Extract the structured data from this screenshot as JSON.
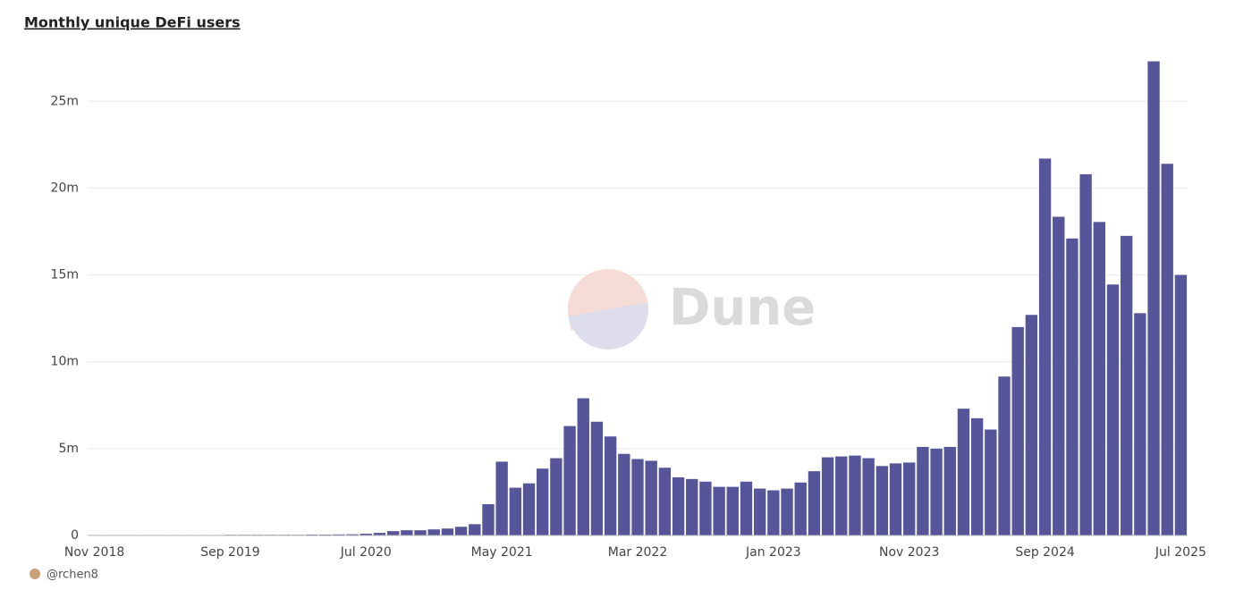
{
  "chart_data": {
    "type": "bar",
    "title": "Monthly unique DeFi users",
    "watermark": "Dune",
    "author": "@rchen8",
    "categories": [
      "Nov 2018",
      null,
      null,
      null,
      null,
      null,
      null,
      null,
      null,
      null,
      "Sep 2019",
      null,
      null,
      null,
      null,
      null,
      null,
      null,
      null,
      null,
      "Jul 2020",
      null,
      null,
      null,
      null,
      null,
      null,
      null,
      null,
      null,
      "May 2021",
      null,
      null,
      null,
      null,
      null,
      null,
      null,
      null,
      null,
      "Mar 2022",
      null,
      null,
      null,
      null,
      null,
      null,
      null,
      null,
      null,
      "Jan 2023",
      null,
      null,
      null,
      null,
      null,
      null,
      null,
      null,
      null,
      "Nov 2023",
      null,
      null,
      null,
      null,
      null,
      null,
      null,
      null,
      null,
      "Sep 2024",
      null,
      null,
      null,
      null,
      null,
      null,
      null,
      null,
      null,
      "Jul 2025"
    ],
    "values": [
      0.03,
      0.03,
      0.03,
      0.03,
      0.03,
      0.03,
      0.03,
      0.03,
      0.03,
      0.03,
      0.04,
      0.04,
      0.04,
      0.04,
      0.04,
      0.04,
      0.05,
      0.05,
      0.06,
      0.07,
      0.1,
      0.15,
      0.25,
      0.3,
      0.3,
      0.35,
      0.4,
      0.5,
      0.65,
      1.8,
      4.25,
      2.75,
      3.0,
      3.85,
      4.45,
      6.3,
      7.9,
      6.55,
      5.7,
      4.7,
      4.4,
      4.3,
      3.9,
      3.35,
      3.25,
      3.1,
      2.8,
      2.8,
      3.1,
      2.7,
      2.6,
      2.7,
      3.05,
      3.7,
      4.5,
      4.55,
      4.6,
      4.45,
      4.0,
      4.15,
      4.2,
      5.1,
      5.0,
      5.1,
      7.3,
      6.75,
      6.1,
      9.15,
      12.0,
      12.7,
      21.7,
      18.35,
      17.1,
      20.8,
      18.05,
      14.45,
      17.25,
      12.8,
      27.3,
      21.4,
      15.0
    ],
    "color": "#56559a",
    "ylim": [
      0,
      28
    ],
    "yticks": [
      0,
      {
        "value": 5,
        "label": "5m"
      },
      {
        "value": 10,
        "label": "10m"
      },
      {
        "value": 15,
        "label": "15m"
      },
      {
        "value": 20,
        "label": "20m"
      },
      {
        "value": 25,
        "label": "25m"
      }
    ],
    "grid": true
  }
}
